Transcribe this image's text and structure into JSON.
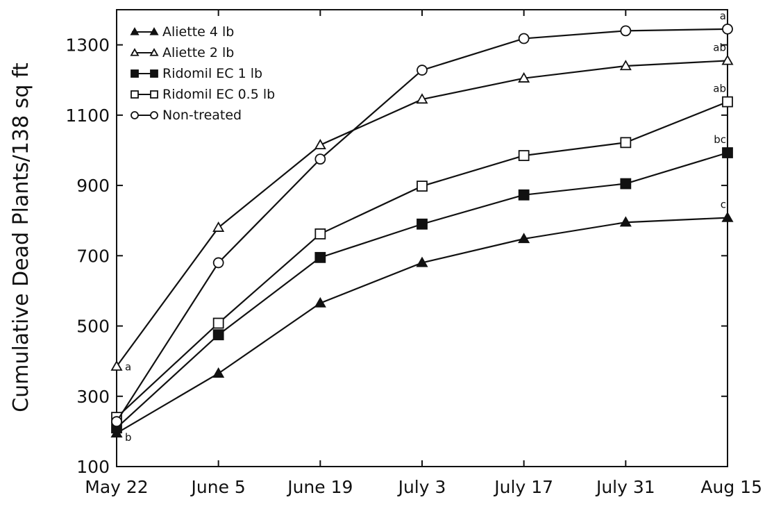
{
  "chart_data": {
    "type": "line",
    "title": "",
    "xlabel": "",
    "ylabel": "Cumulative Dead Plants/138 sq ft",
    "ylim": [
      100,
      1400
    ],
    "yticks": [
      100,
      300,
      500,
      700,
      900,
      1100,
      1300
    ],
    "categories": [
      "May 22",
      "June 5",
      "June 19",
      "July 3",
      "July 17",
      "July 31",
      "Aug 15"
    ],
    "grid": false,
    "legend_position": "top-left",
    "series": [
      {
        "name": "Aliette 4 lb",
        "marker": "triangle-filled",
        "values": [
          195,
          365,
          565,
          680,
          748,
          795,
          808
        ]
      },
      {
        "name": "Aliette 2 lb",
        "marker": "triangle-open",
        "values": [
          385,
          780,
          1015,
          1145,
          1205,
          1240,
          1255
        ]
      },
      {
        "name": "Ridomil EC 1 lb",
        "marker": "square-filled",
        "values": [
          210,
          475,
          695,
          790,
          873,
          905,
          993
        ]
      },
      {
        "name": "Ridomil EC 0.5 lb",
        "marker": "square-open",
        "values": [
          240,
          508,
          762,
          898,
          985,
          1022,
          1138
        ]
      },
      {
        "name": "Non-treated",
        "marker": "circle-open",
        "values": [
          228,
          680,
          975,
          1228,
          1318,
          1340,
          1345
        ]
      }
    ],
    "annotations": [
      {
        "text": "a",
        "category": "May 22",
        "y": 385
      },
      {
        "text": "b",
        "category": "May 22",
        "y": 185
      },
      {
        "text": "a",
        "category": "Aug 15",
        "y": 1345
      },
      {
        "text": "ab",
        "category": "Aug 15",
        "y": 1255
      },
      {
        "text": "ab",
        "category": "Aug 15",
        "y": 1138
      },
      {
        "text": "bc",
        "category": "Aug 15",
        "y": 993
      },
      {
        "text": "c",
        "category": "Aug 15",
        "y": 808
      }
    ]
  }
}
